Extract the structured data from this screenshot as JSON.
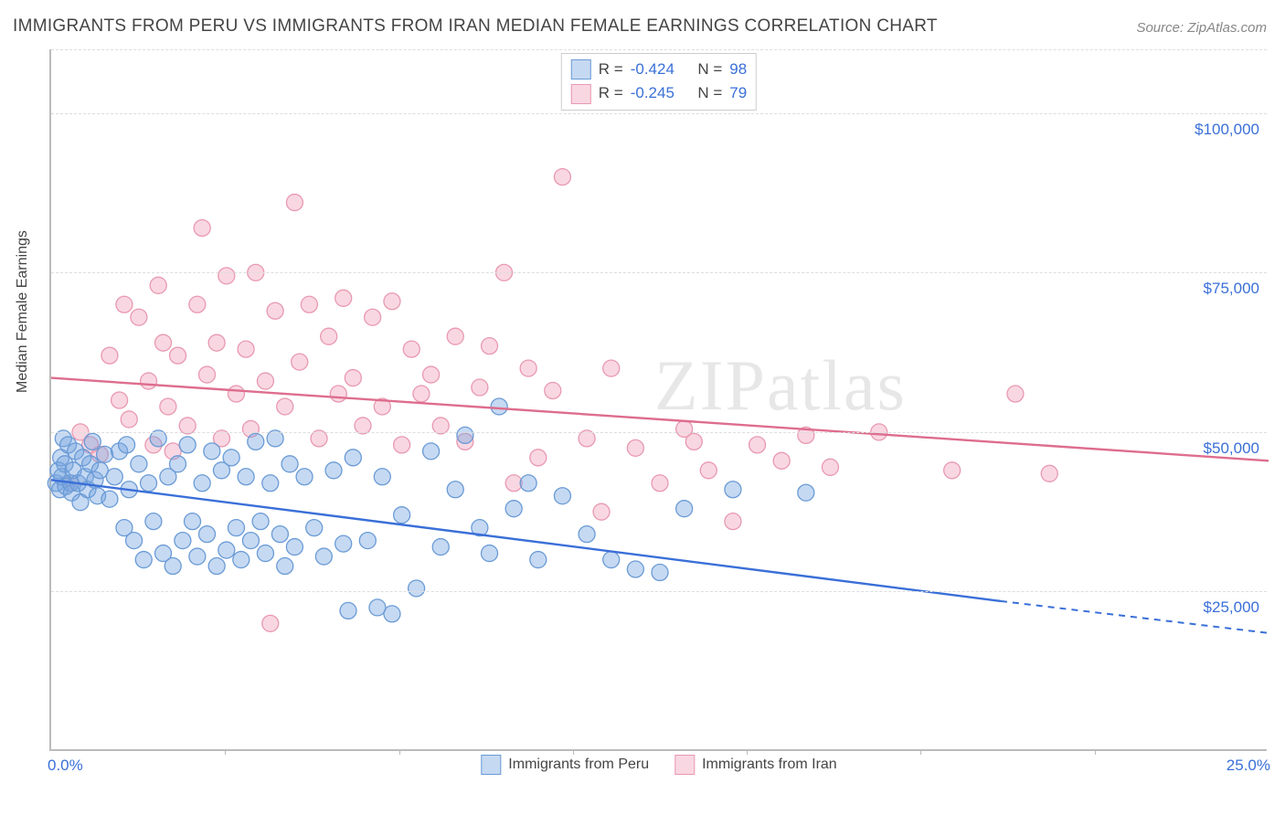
{
  "title": "IMMIGRANTS FROM PERU VS IMMIGRANTS FROM IRAN MEDIAN FEMALE EARNINGS CORRELATION CHART",
  "source": "Source: ZipAtlas.com",
  "watermark": "ZIPatlas",
  "y_axis_label": "Median Female Earnings",
  "chart": {
    "type": "scatter-with-regression",
    "xlim": [
      0,
      25
    ],
    "ylim": [
      0,
      110000
    ],
    "x_ticks": [
      0,
      25
    ],
    "x_tick_labels": [
      "0.0%",
      "25.0%"
    ],
    "x_minor_tick_count": 6,
    "y_gridlines": [
      25000,
      50000,
      75000,
      100000,
      110000
    ],
    "y_tick_labels": [
      "$25,000",
      "$50,000",
      "$75,000",
      "$100,000"
    ],
    "background_color": "#ffffff",
    "grid_color": "#dddddd",
    "axis_color": "#bbbbbb",
    "tick_label_color": "#3a6fd8",
    "title_color": "#444444",
    "title_fontsize": 19,
    "label_fontsize": 16
  },
  "series": {
    "peru": {
      "label": "Immigrants from Peru",
      "fill_color": "rgba(120,165,225,0.42)",
      "stroke_color": "#6a9bd6",
      "line_color": "#3a6fd8",
      "marker_radius": 9,
      "R": "-0.424",
      "N": "98",
      "regression": {
        "x1": 0,
        "y1": 42500,
        "x2": 19.5,
        "y2": 23500,
        "x_solid_end": 19.5,
        "x_dash_end": 25,
        "y_dash_end": 18500
      },
      "points": [
        [
          0.1,
          42000
        ],
        [
          0.15,
          44000
        ],
        [
          0.18,
          41000
        ],
        [
          0.2,
          46000
        ],
        [
          0.22,
          43000
        ],
        [
          0.25,
          49000
        ],
        [
          0.28,
          45000
        ],
        [
          0.3,
          41500
        ],
        [
          0.35,
          48000
        ],
        [
          0.4,
          42000
        ],
        [
          0.42,
          40500
        ],
        [
          0.45,
          44000
        ],
        [
          0.5,
          47000
        ],
        [
          0.55,
          42000
        ],
        [
          0.6,
          39000
        ],
        [
          0.65,
          46000
        ],
        [
          0.7,
          43000
        ],
        [
          0.75,
          41000
        ],
        [
          0.8,
          45000
        ],
        [
          0.85,
          48500
        ],
        [
          0.9,
          42500
        ],
        [
          0.95,
          40000
        ],
        [
          1.0,
          44000
        ],
        [
          1.1,
          46500
        ],
        [
          1.2,
          39500
        ],
        [
          1.3,
          43000
        ],
        [
          1.4,
          47000
        ],
        [
          1.5,
          35000
        ],
        [
          1.55,
          48000
        ],
        [
          1.6,
          41000
        ],
        [
          1.7,
          33000
        ],
        [
          1.8,
          45000
        ],
        [
          1.9,
          30000
        ],
        [
          2.0,
          42000
        ],
        [
          2.1,
          36000
        ],
        [
          2.2,
          49000
        ],
        [
          2.3,
          31000
        ],
        [
          2.4,
          43000
        ],
        [
          2.5,
          29000
        ],
        [
          2.6,
          45000
        ],
        [
          2.7,
          33000
        ],
        [
          2.8,
          48000
        ],
        [
          2.9,
          36000
        ],
        [
          3.0,
          30500
        ],
        [
          3.1,
          42000
        ],
        [
          3.2,
          34000
        ],
        [
          3.3,
          47000
        ],
        [
          3.4,
          29000
        ],
        [
          3.5,
          44000
        ],
        [
          3.6,
          31500
        ],
        [
          3.7,
          46000
        ],
        [
          3.8,
          35000
        ],
        [
          3.9,
          30000
        ],
        [
          4.0,
          43000
        ],
        [
          4.1,
          33000
        ],
        [
          4.2,
          48500
        ],
        [
          4.3,
          36000
        ],
        [
          4.4,
          31000
        ],
        [
          4.5,
          42000
        ],
        [
          4.6,
          49000
        ],
        [
          4.7,
          34000
        ],
        [
          4.8,
          29000
        ],
        [
          4.9,
          45000
        ],
        [
          5.0,
          32000
        ],
        [
          5.2,
          43000
        ],
        [
          5.4,
          35000
        ],
        [
          5.6,
          30500
        ],
        [
          5.8,
          44000
        ],
        [
          6.0,
          32500
        ],
        [
          6.1,
          22000
        ],
        [
          6.2,
          46000
        ],
        [
          6.5,
          33000
        ],
        [
          6.7,
          22500
        ],
        [
          6.8,
          43000
        ],
        [
          7.0,
          21500
        ],
        [
          7.2,
          37000
        ],
        [
          7.5,
          25500
        ],
        [
          7.8,
          47000
        ],
        [
          8.0,
          32000
        ],
        [
          8.3,
          41000
        ],
        [
          8.5,
          49500
        ],
        [
          8.8,
          35000
        ],
        [
          9.0,
          31000
        ],
        [
          9.2,
          54000
        ],
        [
          9.5,
          38000
        ],
        [
          9.8,
          42000
        ],
        [
          10.0,
          30000
        ],
        [
          10.5,
          40000
        ],
        [
          11.0,
          34000
        ],
        [
          11.5,
          30000
        ],
        [
          12.0,
          28500
        ],
        [
          12.5,
          28000
        ],
        [
          13.0,
          38000
        ],
        [
          14.0,
          41000
        ],
        [
          15.5,
          40500
        ]
      ]
    },
    "iran": {
      "label": "Immigrants from Iran",
      "fill_color": "rgba(240,160,185,0.42)",
      "stroke_color": "#e899b0",
      "line_color": "#de6d8e",
      "marker_radius": 9,
      "R": "-0.245",
      "N": "79",
      "regression": {
        "x1": 0,
        "y1": 58500,
        "x2": 25,
        "y2": 45500,
        "x_solid_end": 25,
        "x_dash_end": 25,
        "y_dash_end": 45500
      },
      "points": [
        [
          0.4,
          42000
        ],
        [
          0.6,
          50000
        ],
        [
          0.8,
          48000
        ],
        [
          1.0,
          46500
        ],
        [
          1.2,
          62000
        ],
        [
          1.4,
          55000
        ],
        [
          1.5,
          70000
        ],
        [
          1.6,
          52000
        ],
        [
          1.8,
          68000
        ],
        [
          2.0,
          58000
        ],
        [
          2.1,
          48000
        ],
        [
          2.2,
          73000
        ],
        [
          2.3,
          64000
        ],
        [
          2.4,
          54000
        ],
        [
          2.5,
          47000
        ],
        [
          2.6,
          62000
        ],
        [
          2.8,
          51000
        ],
        [
          3.0,
          70000
        ],
        [
          3.1,
          82000
        ],
        [
          3.2,
          59000
        ],
        [
          3.4,
          64000
        ],
        [
          3.5,
          49000
        ],
        [
          3.6,
          74500
        ],
        [
          3.8,
          56000
        ],
        [
          4.0,
          63000
        ],
        [
          4.1,
          50500
        ],
        [
          4.2,
          75000
        ],
        [
          4.4,
          58000
        ],
        [
          4.5,
          20000
        ],
        [
          4.6,
          69000
        ],
        [
          4.8,
          54000
        ],
        [
          5.0,
          86000
        ],
        [
          5.1,
          61000
        ],
        [
          5.3,
          70000
        ],
        [
          5.5,
          49000
        ],
        [
          5.7,
          65000
        ],
        [
          5.9,
          56000
        ],
        [
          6.0,
          71000
        ],
        [
          6.2,
          58500
        ],
        [
          6.4,
          51000
        ],
        [
          6.6,
          68000
        ],
        [
          6.8,
          54000
        ],
        [
          7.0,
          70500
        ],
        [
          7.2,
          48000
        ],
        [
          7.4,
          63000
        ],
        [
          7.6,
          56000
        ],
        [
          7.8,
          59000
        ],
        [
          8.0,
          51000
        ],
        [
          8.3,
          65000
        ],
        [
          8.5,
          48500
        ],
        [
          8.8,
          57000
        ],
        [
          9.0,
          63500
        ],
        [
          9.3,
          75000
        ],
        [
          9.5,
          42000
        ],
        [
          9.8,
          60000
        ],
        [
          10.0,
          46000
        ],
        [
          10.3,
          56500
        ],
        [
          10.5,
          90000
        ],
        [
          11.0,
          49000
        ],
        [
          11.3,
          37500
        ],
        [
          11.5,
          60000
        ],
        [
          12.0,
          47500
        ],
        [
          12.5,
          42000
        ],
        [
          13.0,
          50500
        ],
        [
          13.2,
          48500
        ],
        [
          13.5,
          44000
        ],
        [
          14.0,
          36000
        ],
        [
          14.5,
          48000
        ],
        [
          15.0,
          45500
        ],
        [
          15.5,
          49500
        ],
        [
          16.0,
          44500
        ],
        [
          17.0,
          50000
        ],
        [
          18.5,
          44000
        ],
        [
          19.8,
          56000
        ],
        [
          20.5,
          43500
        ]
      ]
    }
  },
  "stats_labels": {
    "R": "R =",
    "N": "N ="
  }
}
